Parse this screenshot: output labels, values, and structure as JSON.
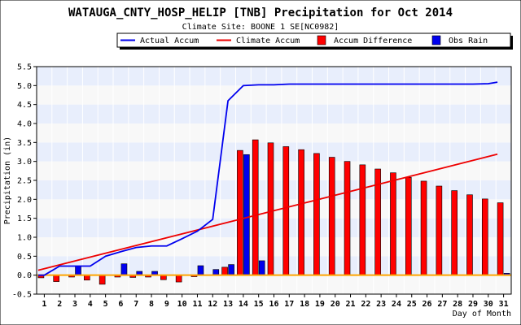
{
  "chart_data": {
    "type": "bar",
    "title": "WATAUGA_CNTY_HOSP_HELIP [TNB] Precipitation for Oct 2014",
    "subtitle": "Climate Site: BOONE 1 SE[NC0982]",
    "xlabel": "Day of Month",
    "ylabel": "Precipitation (in)",
    "xlim": [
      1,
      31
    ],
    "ylim": [
      -0.5,
      5.5
    ],
    "x_ticks": [
      1,
      2,
      3,
      4,
      5,
      6,
      7,
      8,
      9,
      10,
      11,
      12,
      13,
      14,
      15,
      16,
      17,
      18,
      19,
      20,
      21,
      22,
      23,
      24,
      25,
      26,
      27,
      28,
      29,
      30,
      31
    ],
    "y_ticks": [
      -0.5,
      0.0,
      0.5,
      1.0,
      1.5,
      2.0,
      2.5,
      3.0,
      3.5,
      4.0,
      4.5,
      5.0,
      5.5
    ],
    "legend_placement": "top-right",
    "series": [
      {
        "name": "Actual Accum",
        "kind": "line",
        "color": "#0000ee",
        "x": [
          0.6,
          1,
          2,
          3,
          4,
          5,
          6,
          7,
          8,
          9,
          10,
          11,
          12,
          13,
          14,
          15,
          16,
          17,
          18,
          19,
          20,
          21,
          22,
          23,
          24,
          25,
          26,
          27,
          28,
          29,
          30,
          30.6
        ],
        "values": [
          0.0,
          0.0,
          0.24,
          0.24,
          0.24,
          0.5,
          0.62,
          0.73,
          0.77,
          0.77,
          0.96,
          1.16,
          1.47,
          4.6,
          5.0,
          5.02,
          5.02,
          5.04,
          5.04,
          5.04,
          5.04,
          5.04,
          5.04,
          5.04,
          5.04,
          5.04,
          5.04,
          5.04,
          5.04,
          5.04,
          5.05,
          5.09
        ]
      },
      {
        "name": "Climate Accum",
        "kind": "line",
        "color": "#ee0000",
        "x": [
          0.6,
          30.6
        ],
        "values": [
          0.13,
          3.19
        ]
      },
      {
        "name": "Accum Difference",
        "kind": "bar",
        "color": "#ff0000",
        "x": [
          1,
          2,
          3,
          4,
          5,
          6,
          7,
          8,
          9,
          10,
          11,
          12,
          13,
          14,
          15,
          16,
          17,
          18,
          19,
          20,
          21,
          22,
          23,
          24,
          25,
          26,
          27,
          28,
          29,
          30,
          31
        ],
        "values": [
          -0.07,
          -0.17,
          -0.05,
          -0.13,
          -0.24,
          -0.05,
          -0.06,
          -0.05,
          -0.12,
          -0.18,
          -0.04,
          0.0,
          0.21,
          3.29,
          3.57,
          3.49,
          3.39,
          3.31,
          3.21,
          3.11,
          3.0,
          2.91,
          2.8,
          2.7,
          2.58,
          2.48,
          2.35,
          2.23,
          2.12,
          2.01,
          1.91
        ]
      },
      {
        "name": "Obs Rain",
        "kind": "bar",
        "color": "#0000ee",
        "x": [
          1,
          2,
          3,
          4,
          5,
          6,
          7,
          8,
          9,
          10,
          11,
          12,
          13,
          14,
          15,
          16,
          17,
          18,
          19,
          20,
          21,
          22,
          23,
          24,
          25,
          26,
          27,
          28,
          29,
          30,
          31
        ],
        "values": [
          0,
          0,
          0.24,
          0,
          0,
          0.3,
          0.1,
          0.1,
          0,
          0,
          0.25,
          0.15,
          0.28,
          3.18,
          0.38,
          0,
          0,
          0,
          0,
          0,
          0,
          0,
          0,
          0,
          0,
          0,
          0,
          0,
          0,
          0,
          0.05
        ]
      }
    ]
  },
  "colors": {
    "plot_band_light": "#e8eefc",
    "plot_band_white": "#f8f8f8",
    "zero_line": "#ffa500",
    "frame": "#000000"
  }
}
